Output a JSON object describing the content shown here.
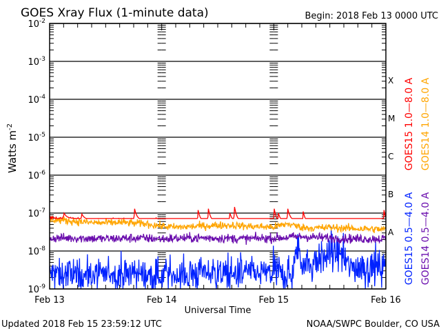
{
  "chart_data": {
    "type": "line",
    "title": "GOES Xray Flux (1-minute data)",
    "begin_label": "Begin:  2018 Feb 13 0000 UTC",
    "xlabel": "Universal Time",
    "ylabel": "Watts m",
    "ylabel_sup": "-2",
    "y_scale": "log",
    "ylim": [
      1e-09,
      0.01
    ],
    "y_ticks": [
      {
        "base": "10",
        "exp": "-2",
        "value": 0.01
      },
      {
        "base": "10",
        "exp": "-3",
        "value": 0.001
      },
      {
        "base": "10",
        "exp": "-4",
        "value": 0.0001
      },
      {
        "base": "10",
        "exp": "-5",
        "value": 1e-05
      },
      {
        "base": "10",
        "exp": "-6",
        "value": 1e-06
      },
      {
        "base": "10",
        "exp": "-7",
        "value": 1e-07
      },
      {
        "base": "10",
        "exp": "-8",
        "value": 1e-08
      },
      {
        "base": "10",
        "exp": "-9",
        "value": 1e-09
      }
    ],
    "xlim_hours": [
      0,
      72
    ],
    "x_ticks": [
      {
        "label": "Feb 13",
        "hours": 0
      },
      {
        "label": "Feb 14",
        "hours": 24
      },
      {
        "label": "Feb 15",
        "hours": 48
      },
      {
        "label": "Feb 16",
        "hours": 72
      }
    ],
    "flare_classes": [
      {
        "label": "X",
        "value": 0.00032
      },
      {
        "label": "M",
        "value": 3.2e-05
      },
      {
        "label": "C",
        "value": 3.2e-06
      },
      {
        "label": "B",
        "value": 3.2e-07
      },
      {
        "label": "A",
        "value": 3.2e-08
      }
    ],
    "grid": true,
    "legend_placement": "right",
    "series": [
      {
        "name": "GOES15 1.0-8.0 A",
        "legend": "GOES15 1.0—8.0 A",
        "color": "#ff0000",
        "hours": [
          0,
          3,
          6,
          9,
          12,
          15,
          18,
          21,
          24,
          27,
          30,
          33,
          36,
          39,
          42,
          45,
          48,
          51,
          54,
          57,
          60,
          63,
          66,
          69,
          72
        ],
        "values": [
          7.5e-08,
          7.2e-08,
          6.8e-08,
          6.4e-08,
          6.3e-08,
          6.5e-08,
          6.2e-08,
          6e-08,
          5.3e-08,
          5e-08,
          5.2e-08,
          5.4e-08,
          5.6e-08,
          5.6e-08,
          5.3e-08,
          5.2e-08,
          5e-08,
          6e-08,
          5e-08,
          4.8e-08,
          5e-08,
          4.8e-08,
          4.6e-08,
          4.5e-08,
          4.4e-08
        ],
        "spikes": [
          {
            "hours": 3.1,
            "value": 1e-07
          },
          {
            "hours": 6.9,
            "value": 9.5e-08
          },
          {
            "hours": 18.2,
            "value": 1.3e-07
          },
          {
            "hours": 22.8,
            "value": 7.5e-08
          },
          {
            "hours": 31.8,
            "value": 1.2e-07
          },
          {
            "hours": 34.0,
            "value": 1.3e-07
          },
          {
            "hours": 38.6,
            "value": 1e-07
          },
          {
            "hours": 39.6,
            "value": 1.45e-07
          },
          {
            "hours": 48.1,
            "value": 1.3e-07
          },
          {
            "hours": 49.0,
            "value": 1e-07
          },
          {
            "hours": 51.0,
            "value": 1.3e-07
          },
          {
            "hours": 54.3,
            "value": 1.1e-07
          },
          {
            "hours": 59.5,
            "value": 6.5e-08
          },
          {
            "hours": 71.6,
            "value": 1.2e-07
          },
          {
            "hours": 71.95,
            "value": 1e-07
          }
        ],
        "noise": 0.03
      },
      {
        "name": "GOES14 1.0-8.0 A",
        "legend": "GOES14 1.0—8.0 A",
        "color": "#ffa500",
        "hours": [
          0,
          3,
          6,
          9,
          12,
          15,
          18,
          21,
          24,
          27,
          30,
          33,
          36,
          39,
          42,
          45,
          48,
          51,
          54,
          57,
          60,
          63,
          66,
          69,
          72
        ],
        "values": [
          6.8e-08,
          6.4e-08,
          6e-08,
          5.6e-08,
          5.5e-08,
          5.7e-08,
          5.4e-08,
          5.2e-08,
          4.5e-08,
          4.2e-08,
          4.4e-08,
          4.6e-08,
          4.8e-08,
          4.8e-08,
          4.5e-08,
          4.4e-08,
          4.3e-08,
          5.2e-08,
          4.2e-08,
          4e-08,
          4.2e-08,
          4e-08,
          3.9e-08,
          3.8e-08,
          3.7e-08
        ],
        "spikes": [],
        "noise": 0.05
      },
      {
        "name": "GOES14 0.5-4.0 A",
        "legend": "GOES14 0.5—4.0 A",
        "color": "#6a0dad",
        "hours": [
          0,
          6,
          12,
          18,
          24,
          30,
          36,
          42,
          48,
          54,
          60,
          66,
          72
        ],
        "values": [
          2.2e-08,
          2.2e-08,
          2.1e-08,
          2.2e-08,
          2.1e-08,
          2.2e-08,
          2.2e-08,
          2.1e-08,
          2.2e-08,
          2.4e-08,
          2.2e-08,
          2.1e-08,
          2.1e-08
        ],
        "spikes": [],
        "noise": 0.06
      },
      {
        "name": "GOES15 0.5-4.0 A",
        "legend": "GOES15 0.5—4.0 A",
        "color": "#0022ff",
        "hours": [
          0,
          6,
          12,
          18,
          24,
          30,
          36,
          42,
          48,
          52,
          53,
          54,
          56,
          58,
          60,
          62,
          64,
          66,
          68,
          72
        ],
        "values": [
          2.5e-09,
          2.5e-09,
          2.5e-09,
          2.5e-09,
          2.3e-09,
          2.5e-09,
          2.7e-09,
          2.5e-09,
          2.5e-09,
          2.4e-09,
          1.2e-08,
          6e-09,
          4.5e-09,
          6e-09,
          8e-09,
          9e-09,
          4e-09,
          3.8e-09,
          3.6e-09,
          4e-09
        ],
        "spikes": [],
        "noise": 0.2
      }
    ]
  },
  "footer": {
    "updated": "Updated 2018 Feb 15 23:59:12 UTC",
    "credit": "NOAA/SWPC Boulder, CO USA"
  }
}
